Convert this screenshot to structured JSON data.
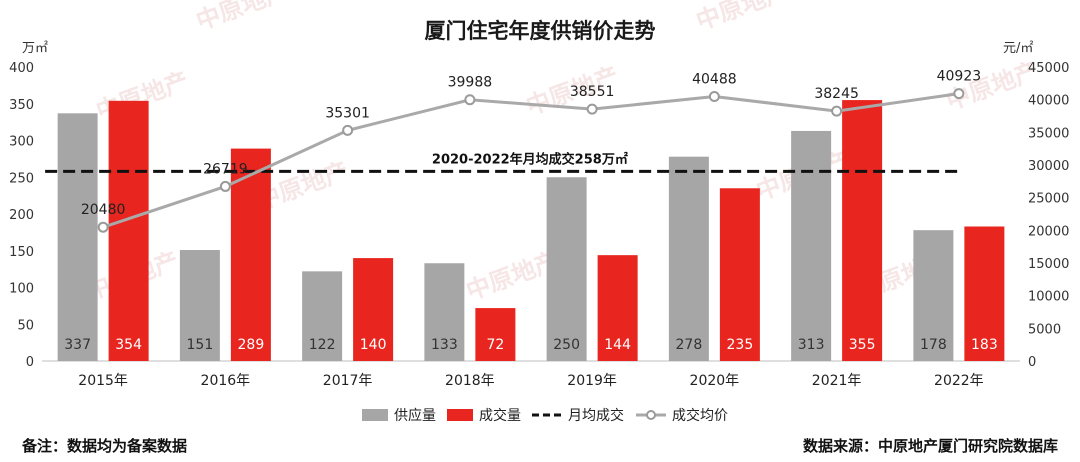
{
  "chart_data": {
    "type": "bar",
    "title": "厦门住宅年度供销价走势",
    "categories": [
      "2015年",
      "2016年",
      "2017年",
      "2018年",
      "2019年",
      "2020年",
      "2021年",
      "2022年"
    ],
    "series": [
      {
        "name": "供应量",
        "type": "bar",
        "axis": "left",
        "color": "#a6a6a6",
        "values": [
          337,
          151,
          122,
          133,
          250,
          278,
          313,
          178
        ]
      },
      {
        "name": "成交量",
        "type": "bar",
        "axis": "left",
        "color": "#e8251f",
        "values": [
          354,
          289,
          140,
          72,
          144,
          235,
          355,
          183
        ]
      },
      {
        "name": "月均成交",
        "type": "reference-line",
        "axis": "left",
        "color": "#111111",
        "value": 258,
        "label": "2020-2022年月均成交258万㎡"
      },
      {
        "name": "成交均价",
        "type": "line",
        "axis": "right",
        "color": "#a9a9a9",
        "values": [
          20480,
          26719,
          35301,
          39988,
          38551,
          40488,
          38245,
          40923
        ]
      }
    ],
    "ylabel": "万㎡",
    "ylim": [
      0,
      400
    ],
    "yticks": [
      0,
      50,
      100,
      150,
      200,
      250,
      300,
      350,
      400
    ],
    "y2label": "元/㎡",
    "y2lim": [
      0,
      45000
    ],
    "y2ticks": [
      0,
      5000,
      10000,
      15000,
      20000,
      25000,
      30000,
      35000,
      40000,
      45000
    ],
    "grid": false,
    "legend": "bottom-center"
  },
  "footer": {
    "note": "备注：数据均为备案数据",
    "source": "数据来源：中原地产厦门研究院数据库"
  },
  "watermark": "中原地产"
}
